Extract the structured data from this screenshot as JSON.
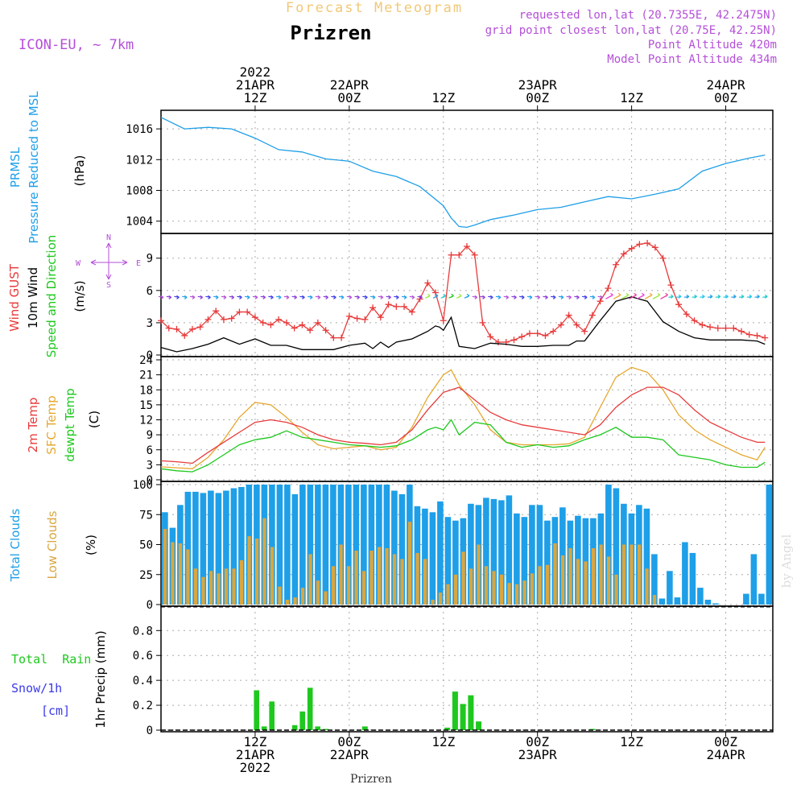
{
  "header": {
    "forecast_title": "Forecast Meteogram",
    "location": "Prizren",
    "model": "ICON-EU, ~ 7km",
    "requested": "requested lon,lat (20.7355E, 42.2475N)",
    "grid_point": "grid point closest lon,lat (20.75E, 42.25N)",
    "point_altitude": "Point Altitude 420m",
    "model_altitude": "Model Point Altitude 434m",
    "footer_location": "Prizren",
    "watermark": "by Angel"
  },
  "colors": {
    "pressure": "#1e9fe8",
    "gust": "#e83a3a",
    "wind": "#000000",
    "temp2m": "#e83a3a",
    "sfc": "#e6a830",
    "dewpt": "#1ec81e",
    "total_clouds": "#1e9fe8",
    "low_clouds": "#d9a640",
    "rain": "#1ec81e",
    "snow": "#3a3ae8",
    "magenta": "#b44fd8"
  },
  "time_axis": {
    "top_ticks": [
      {
        "hour": 12,
        "lines": [
          "2022",
          "21APR",
          "12Z"
        ]
      },
      {
        "hour": 24,
        "lines": [
          "22APR",
          "00Z"
        ]
      },
      {
        "hour": 36,
        "lines": [
          "12Z"
        ]
      },
      {
        "hour": 48,
        "lines": [
          "23APR",
          "00Z"
        ]
      },
      {
        "hour": 60,
        "lines": [
          "12Z"
        ]
      },
      {
        "hour": 72,
        "lines": [
          "24APR",
          "00Z"
        ]
      }
    ],
    "bottom_ticks": [
      {
        "hour": 12,
        "lines": [
          "12Z",
          "21APR",
          "2022"
        ]
      },
      {
        "hour": 24,
        "lines": [
          "00Z",
          "22APR"
        ]
      },
      {
        "hour": 36,
        "lines": [
          "12Z"
        ]
      },
      {
        "hour": 48,
        "lines": [
          "00Z",
          "23APR"
        ]
      },
      {
        "hour": 60,
        "lines": [
          "12Z"
        ]
      },
      {
        "hour": 72,
        "lines": [
          "00Z",
          "24APR"
        ]
      }
    ]
  },
  "panels": {
    "pressure": {
      "labels": [
        "PRMSL",
        "Pressure Reduced to MSL"
      ],
      "unit": "(hPa)"
    },
    "wind": {
      "labels": [
        "Wind GUST",
        "10m Wind",
        "Speed and Direction"
      ],
      "unit": "(m/s)",
      "compass": {
        "n": "N",
        "s": "S",
        "w": "W",
        "e": "E"
      }
    },
    "temp": {
      "labels": [
        "2m Temp",
        "SFC Temp",
        "dewpt Temp"
      ],
      "unit": "(C)"
    },
    "clouds": {
      "labels": [
        "Total Clouds",
        "Low Clouds"
      ],
      "unit": "(%)"
    },
    "precip": {
      "labels": [
        "Total  Rain",
        "Snow/1h",
        "[cm]"
      ],
      "unit": "1hr Precip (mm)"
    }
  },
  "chart_data": [
    {
      "type": "line",
      "panel": "pressure",
      "ylabel": "(hPa)",
      "ylim": [
        1002.4,
        1018
      ],
      "yticks": [
        1004,
        1008,
        1012,
        1016
      ],
      "grid": true,
      "series": [
        {
          "name": "PRMSL",
          "x": [
            0,
            3,
            6,
            9,
            12,
            15,
            18,
            21,
            24,
            27,
            30,
            33,
            36,
            37,
            38,
            39,
            40,
            42,
            45,
            48,
            51,
            54,
            57,
            60,
            63,
            66,
            69,
            72,
            75,
            77
          ],
          "values": [
            1017.5,
            1016.0,
            1016.2,
            1016.0,
            1014.8,
            1013.3,
            1013.0,
            1012.1,
            1011.8,
            1010.5,
            1009.8,
            1008.5,
            1006.0,
            1004.4,
            1003.3,
            1003.2,
            1003.5,
            1004.2,
            1004.8,
            1005.5,
            1005.8,
            1006.5,
            1007.2,
            1006.9,
            1007.5,
            1008.2,
            1010.5,
            1011.5,
            1012.2,
            1012.6
          ]
        }
      ]
    },
    {
      "type": "line",
      "panel": "wind",
      "ylabel": "(m/s)",
      "ylim": [
        0,
        11
      ],
      "yticks": [
        0,
        3,
        6,
        9
      ],
      "grid": true,
      "series": [
        {
          "name": "Wind GUST",
          "x": [
            0,
            1,
            2,
            3,
            4,
            5,
            6,
            7,
            8,
            9,
            10,
            11,
            12,
            13,
            14,
            15,
            16,
            17,
            18,
            19,
            20,
            21,
            22,
            23,
            24,
            25,
            26,
            27,
            28,
            29,
            30,
            31,
            32,
            33,
            34,
            35,
            36,
            37,
            38,
            39,
            40,
            41,
            42,
            43,
            44,
            45,
            46,
            47,
            48,
            49,
            50,
            51,
            52,
            53,
            54,
            55,
            56,
            57,
            58,
            59,
            60,
            61,
            62,
            63,
            64,
            65,
            66,
            67,
            68,
            69,
            70,
            71,
            72,
            73,
            74,
            75,
            76,
            77
          ],
          "values": [
            3.2,
            2.5,
            2.4,
            1.8,
            2.4,
            2.6,
            3.3,
            4.1,
            3.3,
            3.4,
            4.0,
            4.0,
            3.5,
            3.0,
            2.8,
            3.3,
            3.0,
            2.5,
            2.8,
            2.3,
            3.0,
            2.3,
            1.6,
            1.6,
            3.6,
            3.4,
            3.3,
            4.4,
            3.5,
            4.7,
            4.5,
            4.5,
            4.0,
            5.2,
            6.7,
            5.8,
            3.2,
            9.3,
            9.3,
            10.1,
            9.3,
            3.0,
            1.7,
            1.2,
            1.2,
            1.4,
            1.7,
            2.0,
            2.0,
            1.8,
            2.2,
            2.8,
            3.7,
            2.8,
            2.2,
            3.7,
            5.0,
            6.2,
            8.4,
            9.4,
            9.9,
            10.3,
            10.4,
            10.0,
            9.0,
            6.5,
            4.7,
            3.8,
            3.2,
            2.8,
            2.6,
            2.5,
            2.5,
            2.5,
            2.2,
            1.9,
            1.8,
            1.6
          ]
        },
        {
          "name": "10m Wind",
          "x": [
            0,
            2,
            4,
            6,
            8,
            10,
            12,
            14,
            16,
            18,
            20,
            22,
            24,
            26,
            27,
            28,
            29,
            30,
            32,
            34,
            35,
            35.5,
            36,
            37,
            38,
            40,
            42,
            44,
            46,
            48,
            50,
            52,
            53,
            54,
            56,
            58,
            60,
            62,
            64,
            66,
            68,
            70,
            72,
            74,
            76,
            77
          ],
          "values": [
            0.7,
            0.3,
            0.6,
            1.0,
            1.6,
            1.0,
            1.5,
            0.9,
            0.9,
            0.5,
            0.5,
            0.5,
            0.9,
            1.1,
            0.6,
            1.2,
            0.7,
            1.2,
            1.5,
            2.2,
            2.7,
            2.6,
            2.3,
            3.5,
            0.8,
            0.6,
            1.1,
            1.0,
            0.8,
            0.8,
            0.9,
            0.9,
            1.3,
            1.3,
            3.2,
            5.0,
            5.4,
            5.0,
            3.1,
            2.2,
            1.6,
            1.4,
            1.4,
            1.4,
            1.3,
            1.0
          ]
        }
      ],
      "wind_arrows": [
        {
          "x": 0,
          "dir": "E",
          "speed": "low"
        },
        {
          "x": 6,
          "dir": "E",
          "speed": "low"
        },
        {
          "x": 12,
          "dir": "E",
          "speed": "low"
        },
        {
          "x": 18,
          "dir": "E",
          "speed": "low"
        },
        {
          "x": 24,
          "dir": "E",
          "speed": "low"
        },
        {
          "x": 30,
          "dir": "E",
          "speed": "low"
        },
        {
          "x": 36,
          "dir": "NE",
          "speed": "moderate"
        },
        {
          "x": 40,
          "dir": "E",
          "speed": "low"
        },
        {
          "x": 46,
          "dir": "E",
          "speed": "low"
        },
        {
          "x": 52,
          "dir": "NE",
          "speed": "low"
        },
        {
          "x": 58,
          "dir": "NE",
          "speed": "moderate"
        },
        {
          "x": 64,
          "dir": "NE",
          "speed": "moderate"
        },
        {
          "x": 70,
          "dir": "E",
          "speed": "low"
        },
        {
          "x": 76,
          "dir": "E",
          "speed": "low"
        }
      ]
    },
    {
      "type": "line",
      "panel": "temp",
      "ylabel": "(C)",
      "ylim": [
        0,
        24
      ],
      "yticks": [
        0,
        3,
        6,
        9,
        12,
        15,
        18,
        21,
        24
      ],
      "grid": true,
      "series": [
        {
          "name": "2m Temp",
          "x": [
            0,
            2,
            4,
            6,
            8,
            10,
            12,
            14,
            16,
            18,
            20,
            22,
            24,
            26,
            28,
            30,
            32,
            34,
            36,
            38,
            40,
            42,
            44,
            46,
            48,
            50,
            52,
            54,
            56,
            58,
            60,
            62,
            64,
            66,
            68,
            70,
            72,
            74,
            76,
            77
          ],
          "values": [
            3.8,
            3.6,
            3.3,
            5.5,
            7.5,
            9.5,
            11.5,
            12.0,
            11.5,
            10.5,
            9.0,
            8.0,
            7.5,
            7.3,
            7.0,
            7.5,
            10.0,
            14.0,
            17.5,
            18.5,
            16.0,
            13.5,
            12.0,
            11.0,
            10.5,
            10.0,
            9.5,
            9.0,
            11.0,
            14.5,
            17.0,
            18.5,
            18.5,
            17.0,
            14.0,
            11.5,
            10.0,
            8.5,
            7.5,
            7.5
          ]
        },
        {
          "name": "SFC Temp",
          "x": [
            0,
            2,
            4,
            6,
            8,
            10,
            12,
            14,
            16,
            18,
            20,
            22,
            24,
            26,
            28,
            30,
            32,
            34,
            36,
            37,
            38,
            40,
            42,
            44,
            46,
            48,
            50,
            52,
            54,
            56,
            58,
            60,
            62,
            64,
            66,
            68,
            70,
            72,
            74,
            76,
            77
          ],
          "values": [
            2.6,
            2.4,
            2.2,
            4.5,
            8.0,
            12.5,
            15.5,
            15.0,
            12.5,
            9.5,
            7.0,
            6.2,
            6.5,
            6.8,
            6.0,
            6.5,
            10.5,
            16.5,
            21.0,
            22.0,
            19.0,
            15.0,
            10.0,
            7.5,
            7.0,
            7.0,
            7.0,
            7.2,
            8.5,
            14.5,
            20.5,
            22.5,
            21.5,
            18.0,
            13.0,
            10.0,
            8.0,
            6.5,
            5.0,
            4.0,
            6.5
          ]
        },
        {
          "name": "dewpt Temp",
          "x": [
            0,
            2,
            4,
            6,
            8,
            10,
            12,
            14,
            16,
            18,
            20,
            22,
            24,
            26,
            28,
            30,
            32,
            34,
            35,
            36,
            37,
            38,
            40,
            42,
            44,
            46,
            48,
            50,
            52,
            54,
            56,
            58,
            60,
            62,
            64,
            66,
            68,
            70,
            72,
            74,
            76,
            77
          ],
          "values": [
            2.2,
            1.8,
            1.6,
            3.0,
            5.0,
            7.0,
            8.0,
            8.5,
            9.8,
            8.5,
            8.0,
            7.5,
            7.0,
            6.8,
            6.5,
            6.8,
            8.0,
            10.0,
            10.5,
            10.0,
            12.0,
            9.0,
            11.5,
            11.0,
            7.5,
            6.5,
            7.0,
            6.5,
            6.8,
            8.0,
            9.0,
            10.5,
            8.5,
            8.5,
            8.0,
            5.0,
            4.5,
            4.0,
            3.0,
            2.5,
            2.5,
            3.5
          ]
        }
      ]
    },
    {
      "type": "bar",
      "panel": "clouds",
      "ylabel": "(%)",
      "ylim": [
        0,
        100
      ],
      "yticks": [
        0,
        25,
        50,
        75,
        100
      ],
      "grid": true,
      "series": [
        {
          "name": "Total Clouds",
          "values": [
            77,
            64,
            83,
            94,
            94,
            93,
            95,
            93,
            95,
            97,
            98,
            100,
            100,
            100,
            100,
            100,
            100,
            92,
            100,
            100,
            100,
            100,
            100,
            100,
            100,
            100,
            100,
            100,
            100,
            100,
            95,
            92,
            100,
            82,
            80,
            77,
            86,
            73,
            70,
            72,
            84,
            83,
            89,
            88,
            87,
            91,
            76,
            73,
            83,
            83,
            70,
            73,
            81,
            70,
            74,
            72,
            72,
            76,
            100,
            97,
            84,
            76,
            83,
            80,
            42,
            5,
            28,
            6,
            52,
            43,
            14,
            4,
            1,
            0,
            0,
            0,
            9,
            42,
            9,
            100
          ]
        },
        {
          "name": "Low Clouds",
          "values": [
            63,
            52,
            51,
            46,
            30,
            23,
            28,
            26,
            30,
            30,
            37,
            57,
            55,
            72,
            48,
            15,
            4,
            6,
            14,
            42,
            20,
            11,
            32,
            50,
            32,
            45,
            28,
            45,
            48,
            47,
            42,
            38,
            69,
            43,
            38,
            4,
            10,
            17,
            25,
            44,
            30,
            50,
            32,
            28,
            25,
            18,
            17,
            20,
            26,
            32,
            33,
            51,
            41,
            47,
            38,
            36,
            47,
            50,
            40,
            25,
            50,
            50,
            50,
            30,
            8,
            0,
            0,
            0,
            0,
            0,
            0,
            0,
            0,
            0,
            0,
            0,
            0,
            0,
            0,
            0
          ]
        }
      ]
    },
    {
      "type": "bar",
      "panel": "precip",
      "ylabel": "1hr Precip (mm)",
      "ylim": [
        0,
        0.97
      ],
      "yticks": [
        0,
        0.2,
        0.4,
        0.6,
        0.8
      ],
      "grid": true,
      "series": [
        {
          "name": "Total Rain",
          "values": [
            0,
            0,
            0,
            0,
            0,
            0,
            0,
            0,
            0,
            0,
            0,
            0,
            0.32,
            0.03,
            0.23,
            0,
            0,
            0.04,
            0.15,
            0.34,
            0.03,
            0,
            0,
            0,
            0,
            0,
            0,
            0,
            0,
            0,
            0,
            0,
            0,
            0,
            0,
            0,
            0,
            0,
            0,
            0,
            0,
            0,
            0,
            0,
            0,
            0,
            0,
            0,
            0,
            0,
            0,
            0,
            0,
            0,
            0,
            0,
            0,
            0,
            0,
            0,
            0,
            0,
            0,
            0,
            0,
            0,
            0,
            0,
            0,
            0,
            0,
            0,
            0,
            0,
            0,
            0,
            0,
            0,
            0,
            0
          ]
        },
        {
          "name": "Snow/1h",
          "values": []
        }
      ],
      "extra_rain": [
        {
          "hour": 36.5,
          "value": 0.02
        },
        {
          "hour": 37.5,
          "value": 0.31
        },
        {
          "hour": 38.5,
          "value": 0.21
        },
        {
          "hour": 39.5,
          "value": 0.28
        },
        {
          "hour": 40.5,
          "value": 0.07
        },
        {
          "hour": 55,
          "value": 0.01
        },
        {
          "hour": 21,
          "value": 0.01
        },
        {
          "hour": 26,
          "value": 0.03
        }
      ]
    }
  ]
}
